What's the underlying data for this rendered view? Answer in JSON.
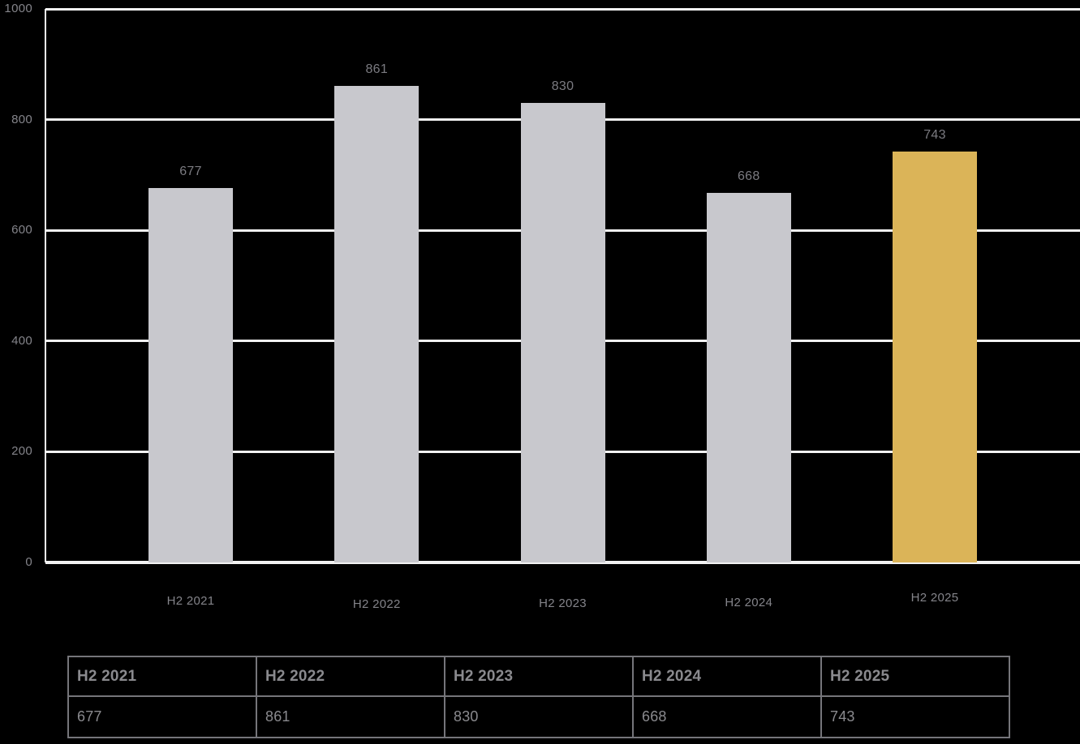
{
  "chart_data": {
    "type": "bar",
    "title": "",
    "xlabel": "",
    "ylabel": "",
    "categories": [
      "H2 2021",
      "H2 2022",
      "H2 2023",
      "H2 2024",
      "H2 2025"
    ],
    "values": [
      677,
      861,
      830,
      668,
      743
    ],
    "ylim": [
      0,
      1000
    ],
    "yticks": [
      0,
      200,
      400,
      600,
      800,
      1000
    ],
    "grid": true,
    "legend": false,
    "highlight_index": 4,
    "highlight_category": "H2 2025",
    "background_color": "#000000",
    "bar_color": "#C8C8CD",
    "highlight_color": "#DBB458",
    "gridline_color": "#F2F2F2",
    "axis_line_color": "#F2F2F2",
    "ytick_label_color": "#84848A",
    "value_label_color": "#7B7B81",
    "xtick_label_color": "#84848A"
  },
  "table": {
    "headers": [
      "H2 2021",
      "H2 2022",
      "H2 2023",
      "H2 2024",
      "H2 2025"
    ],
    "values": [
      "677",
      "861",
      "830",
      "668",
      "743"
    ],
    "border_color": "#75757A",
    "text_color": "#8A8A8E"
  }
}
